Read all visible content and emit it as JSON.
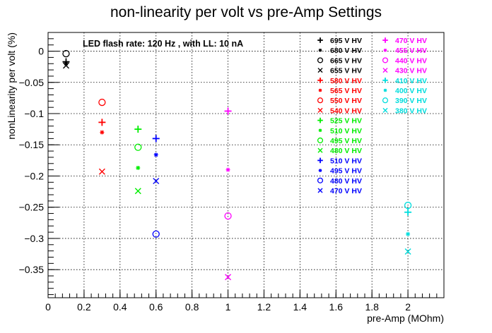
{
  "chart_data": {
    "type": "scatter",
    "title": "non-linearity per volt vs pre-Amp Settings",
    "xlabel": "pre-Amp (MOhm)",
    "ylabel": "nonLinearity per volt (%)",
    "annotation": "LED flash rate: 120 Hz , with LL: 10 nA",
    "xlim": [
      0,
      2.2
    ],
    "ylim": [
      -0.395,
      0.03
    ],
    "x_ticks": [
      0,
      0.2,
      0.4,
      0.6,
      0.8,
      1,
      1.2,
      1.4,
      1.6,
      1.8,
      2
    ],
    "x_tick_labels": [
      "0",
      "0.2",
      "0.4",
      "0.6",
      "0.8",
      "1",
      "1.2",
      "1.4",
      "1.6",
      "1.8",
      "2"
    ],
    "y_ticks": [
      0,
      -0.05,
      -0.1,
      -0.15,
      -0.2,
      -0.25,
      -0.3,
      -0.35
    ],
    "y_tick_labels": [
      "0",
      "−0.05",
      "−0.1",
      "−0.15",
      "−0.2",
      "−0.25",
      "−0.3",
      "−0.35"
    ],
    "grid": true,
    "legend_position": "top-right",
    "series": [
      {
        "name": "695 V HV",
        "color": "#000000",
        "marker": "plus",
        "x": [
          0.1
        ],
        "y": [
          -0.017
        ]
      },
      {
        "name": "680 V HV",
        "color": "#000000",
        "marker": "star",
        "x": [
          0.1
        ],
        "y": [
          -0.02
        ]
      },
      {
        "name": "665 V HV",
        "color": "#000000",
        "marker": "circle",
        "x": [
          0.1
        ],
        "y": [
          -0.004
        ]
      },
      {
        "name": "655 V HV",
        "color": "#000000",
        "marker": "cross",
        "x": [
          0.1
        ],
        "y": [
          -0.023
        ]
      },
      {
        "name": "580 V HV",
        "color": "#ff0000",
        "marker": "plus",
        "x": [
          0.3
        ],
        "y": [
          -0.114
        ]
      },
      {
        "name": "565 V HV",
        "color": "#ff0000",
        "marker": "star",
        "x": [
          0.3
        ],
        "y": [
          -0.13
        ]
      },
      {
        "name": "550 V HV",
        "color": "#ff0000",
        "marker": "circle",
        "x": [
          0.3
        ],
        "y": [
          -0.082
        ]
      },
      {
        "name": "540 V HV",
        "color": "#ff0000",
        "marker": "cross",
        "x": [
          0.3
        ],
        "y": [
          -0.193
        ]
      },
      {
        "name": "525 V HV",
        "color": "#00ee00",
        "marker": "plus",
        "x": [
          0.5
        ],
        "y": [
          -0.125
        ]
      },
      {
        "name": "510 V HV",
        "color": "#00ee00",
        "marker": "star",
        "x": [
          0.5
        ],
        "y": [
          -0.187
        ]
      },
      {
        "name": "495 V HV",
        "color": "#00ee00",
        "marker": "circle",
        "x": [
          0.5
        ],
        "y": [
          -0.154
        ]
      },
      {
        "name": "480 V HV",
        "color": "#00ee00",
        "marker": "cross",
        "x": [
          0.5
        ],
        "y": [
          -0.224
        ]
      },
      {
        "name": "510 V HV",
        "color": "#0000ff",
        "marker": "plus",
        "x": [
          0.6
        ],
        "y": [
          -0.14
        ]
      },
      {
        "name": "495 V HV",
        "color": "#0000ff",
        "marker": "star",
        "x": [
          0.6
        ],
        "y": [
          -0.166
        ]
      },
      {
        "name": "480 V HV",
        "color": "#0000ff",
        "marker": "circle",
        "x": [
          0.6
        ],
        "y": [
          -0.293
        ]
      },
      {
        "name": "470 V HV",
        "color": "#0000ff",
        "marker": "cross",
        "x": [
          0.6
        ],
        "y": [
          -0.208
        ]
      },
      {
        "name": "470 V HV",
        "color": "#ff00ff",
        "marker": "plus",
        "x": [
          1.0
        ],
        "y": [
          -0.096
        ]
      },
      {
        "name": "455 V HV",
        "color": "#ff00ff",
        "marker": "star",
        "x": [
          1.0
        ],
        "y": [
          -0.19
        ]
      },
      {
        "name": "440 V HV",
        "color": "#ff00ff",
        "marker": "circle",
        "x": [
          1.0
        ],
        "y": [
          -0.264
        ]
      },
      {
        "name": "430 V HV",
        "color": "#ff00ff",
        "marker": "cross",
        "x": [
          1.0
        ],
        "y": [
          -0.362
        ]
      },
      {
        "name": "410 V HV",
        "color": "#00dddd",
        "marker": "plus",
        "x": [
          2.0
        ],
        "y": [
          -0.258
        ]
      },
      {
        "name": "400 V HV",
        "color": "#00dddd",
        "marker": "star",
        "x": [
          2.0
        ],
        "y": [
          -0.293
        ]
      },
      {
        "name": "390 V HV",
        "color": "#00dddd",
        "marker": "circle",
        "x": [
          2.0
        ],
        "y": [
          -0.247
        ]
      },
      {
        "name": "380 V HV",
        "color": "#00dddd",
        "marker": "cross",
        "x": [
          2.0
        ],
        "y": [
          -0.321
        ]
      }
    ]
  }
}
